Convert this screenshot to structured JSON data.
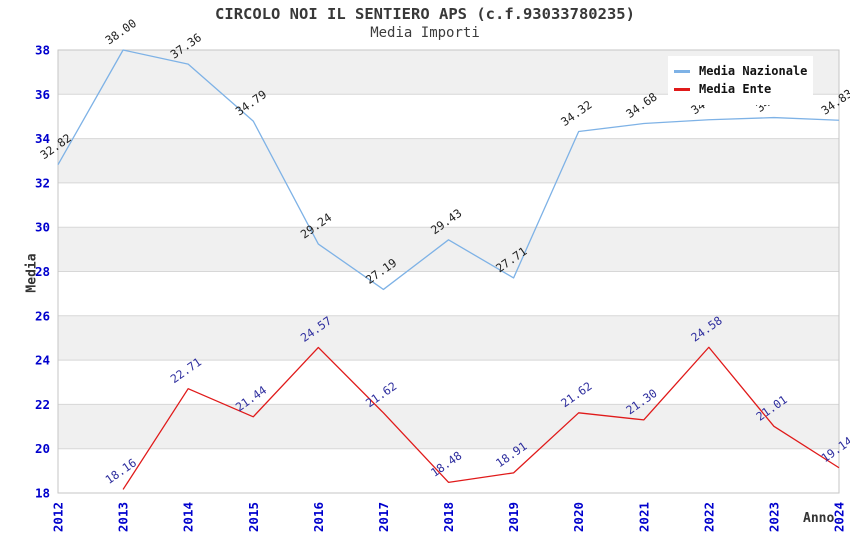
{
  "header": {
    "title": "CIRCOLO NOI IL SENTIERO APS (c.f.93033780235)",
    "subtitle": "Media Importi"
  },
  "legend": {
    "items": [
      {
        "label": "Media Nazionale",
        "color": "#7eb2e6"
      },
      {
        "label": "Media Ente",
        "color": "#e01a1a"
      }
    ]
  },
  "axes": {
    "y_title": "Media",
    "x_title": "Anno",
    "y_tick_labels": [
      "18",
      "20",
      "22",
      "24",
      "26",
      "28",
      "30",
      "32",
      "34",
      "36",
      "38"
    ],
    "x_tick_labels": [
      "2012",
      "2013",
      "2014",
      "2015",
      "2016",
      "2017",
      "2018",
      "2019",
      "2020",
      "2021",
      "2022",
      "2023",
      "2024"
    ],
    "tick_color": "#0000cd"
  },
  "colors": {
    "band_gray": "#f0f0f0",
    "band_white": "#ffffff",
    "gridline": "#d7d7d7",
    "plot_border": "#c6c6c6",
    "blue_series_label": "#1f1f1f",
    "red_series_label": "#2e2e9e"
  },
  "chart_data": {
    "type": "line",
    "title": "CIRCOLO NOI IL SENTIERO APS (c.f.93033780235)",
    "subtitle": "Media Importi",
    "xlabel": "Anno",
    "ylabel": "Media",
    "x": [
      2012,
      2013,
      2014,
      2015,
      2016,
      2017,
      2018,
      2019,
      2020,
      2021,
      2022,
      2023,
      2024
    ],
    "ylim": [
      18,
      38
    ],
    "y_tick_step": 2,
    "grid": true,
    "legend_position": "top-right",
    "banded_background": true,
    "series": [
      {
        "name": "Media Nazionale",
        "color": "#7eb2e6",
        "label_color": "#1f1f1f",
        "x": [
          2012,
          2013,
          2014,
          2015,
          2016,
          2017,
          2018,
          2019,
          2020,
          2021,
          2022,
          2023,
          2024
        ],
        "values": [
          32.82,
          38.0,
          37.36,
          34.79,
          29.24,
          27.19,
          29.43,
          27.71,
          34.32,
          34.68,
          34.85,
          34.95,
          34.83
        ],
        "note": "2022 and 2023 point labels are partially hidden behind the legend box in the source image; values estimated from line position"
      },
      {
        "name": "Media Ente",
        "color": "#e01a1a",
        "label_color": "#2e2e9e",
        "x": [
          2013,
          2014,
          2015,
          2016,
          2017,
          2018,
          2019,
          2020,
          2021,
          2022,
          2023,
          2024
        ],
        "values": [
          18.16,
          22.71,
          21.44,
          24.57,
          21.62,
          18.48,
          18.91,
          21.62,
          21.3,
          24.58,
          21.01,
          19.14
        ]
      }
    ]
  }
}
